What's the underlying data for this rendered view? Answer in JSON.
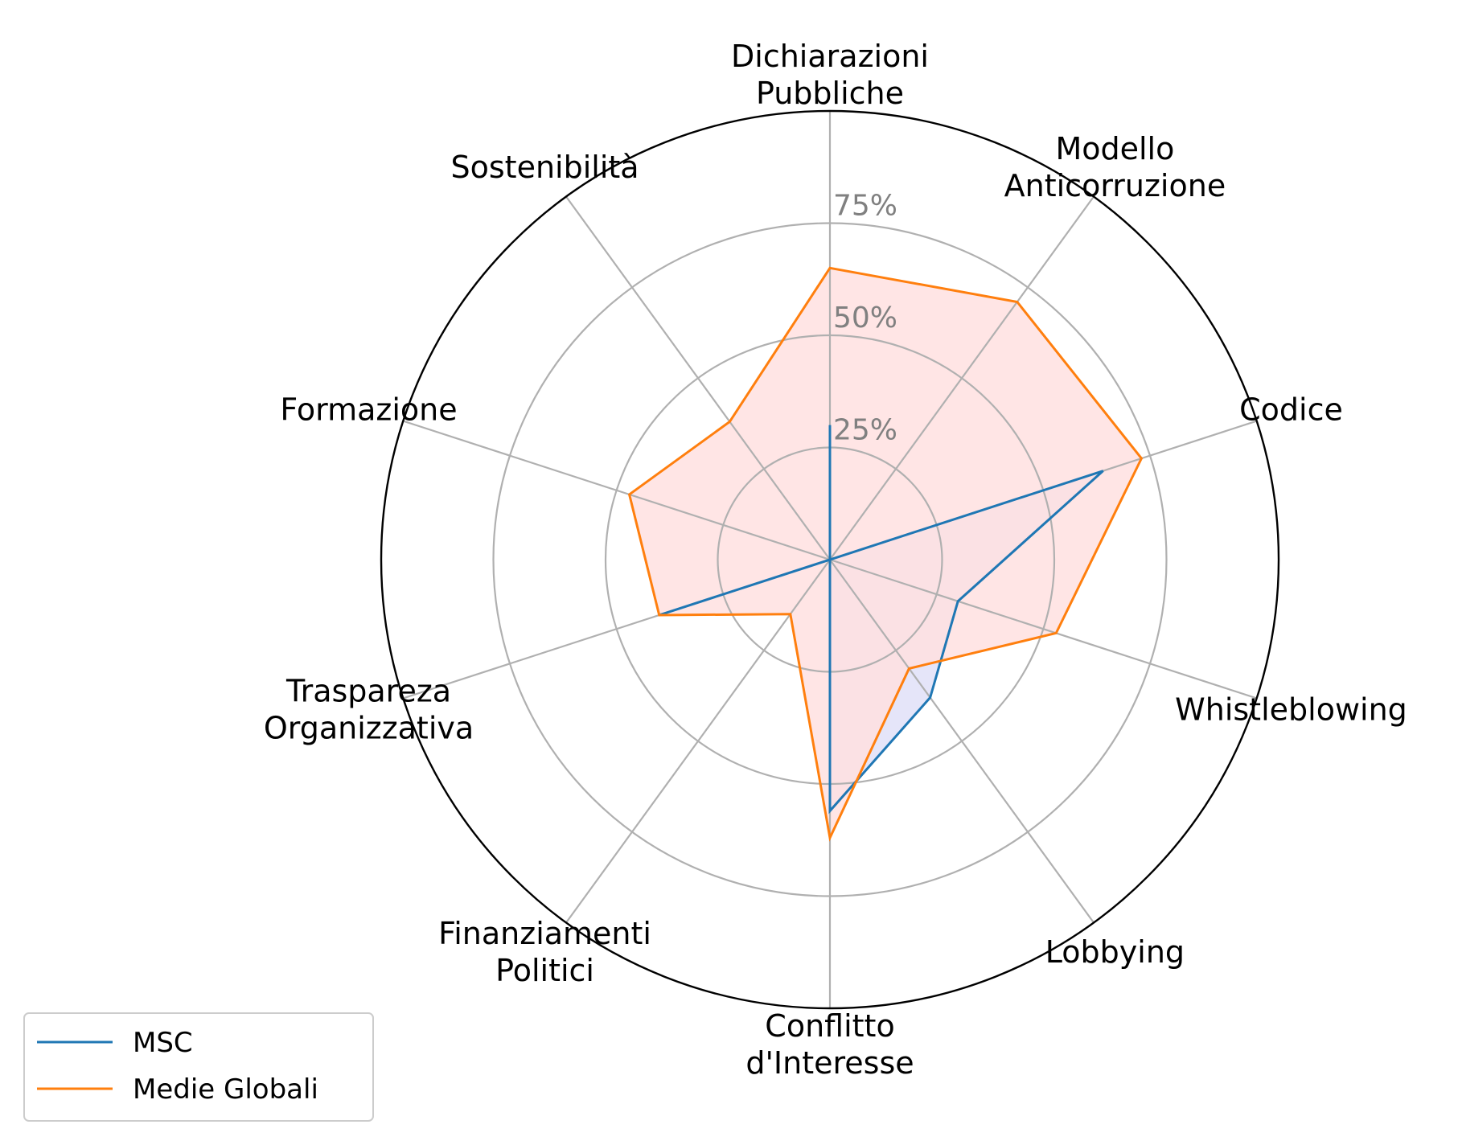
{
  "chart_data": {
    "type": "radar",
    "categories": [
      "Dichiarazioni\nPubbliche",
      "Modello\nAnticorruzione",
      "Codice",
      "Whistleblowing",
      "Lobbying",
      "Conflitto\nd'Interesse",
      "Finanziamenti\nPolitici",
      "Traspareza\nOrganizzativa",
      "Formazione",
      "Sostenibilità"
    ],
    "radial_ticks": [
      25,
      50,
      75
    ],
    "radial_tick_labels": [
      "25%",
      "50%",
      "75%"
    ],
    "rlim": [
      0,
      100
    ],
    "grid": true,
    "legend_position": "lower-left",
    "series": [
      {
        "name": "MSC",
        "color": "#1f77b4",
        "fill": "#e0e0f8",
        "values": [
          30,
          0,
          64,
          30,
          38,
          56,
          0,
          40,
          0,
          0
        ]
      },
      {
        "name": "Medie Globali",
        "color": "#ff7f0e",
        "fill": "#ffe0e0",
        "values": [
          65,
          71,
          73,
          53,
          30,
          62,
          15,
          40,
          47,
          38
        ]
      }
    ]
  }
}
